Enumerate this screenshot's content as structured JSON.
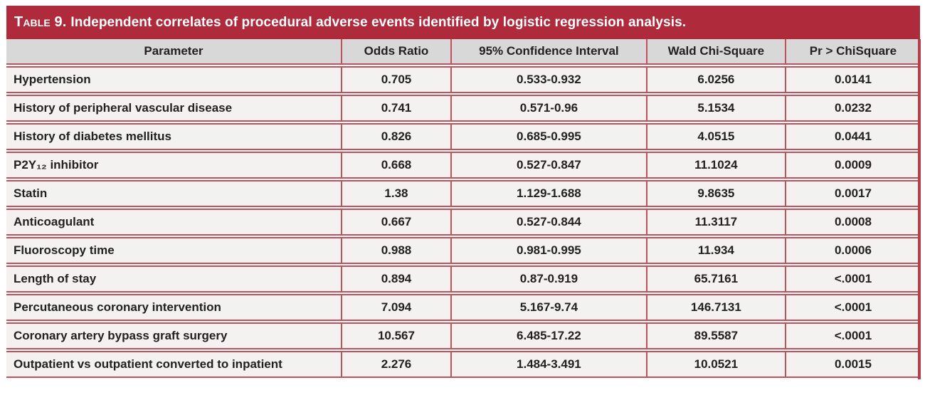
{
  "colors": {
    "title_bar_bg": "#AF2B3B",
    "title_text": "#FFFFFF",
    "header_bg": "#D9D8D9",
    "row_bg": "#F4F1F1",
    "grid_red": "#C2515C",
    "outer_right_red": "#B23F4A",
    "body_text": "#242021"
  },
  "table": {
    "title_prefix": "Table 9.",
    "title_rest": "Independent correlates of procedural adverse events identified by logistic regression analysis.",
    "columns": [
      "Parameter",
      "Odds Ratio",
      "95% Confidence Interval",
      "Wald Chi-Square",
      "Pr > ChiSquare"
    ],
    "rows": [
      [
        "Hypertension",
        "0.705",
        "0.533-0.932",
        "6.0256",
        "0.0141"
      ],
      [
        "History of peripheral vascular disease",
        "0.741",
        "0.571-0.96",
        "5.1534",
        "0.0232"
      ],
      [
        "History of diabetes mellitus",
        "0.826",
        "0.685-0.995",
        "4.0515",
        "0.0441"
      ],
      [
        "P2Y₁₂ inhibitor",
        "0.668",
        "0.527-0.847",
        "11.1024",
        "0.0009"
      ],
      [
        "Statin",
        "1.38",
        "1.129-1.688",
        "9.8635",
        "0.0017"
      ],
      [
        "Anticoagulant",
        "0.667",
        "0.527-0.844",
        "11.3117",
        "0.0008"
      ],
      [
        "Fluoroscopy time",
        "0.988",
        "0.981-0.995",
        "11.934",
        "0.0006"
      ],
      [
        "Length of stay",
        "0.894",
        "0.87-0.919",
        "65.7161",
        "<.0001"
      ],
      [
        "Percutaneous coronary intervention",
        "7.094",
        "5.167-9.74",
        "146.7131",
        "<.0001"
      ],
      [
        "Coronary artery bypass graft surgery",
        "10.567",
        "6.485-17.22",
        "89.5587",
        "<.0001"
      ],
      [
        "Outpatient vs outpatient converted to inpatient",
        "2.276",
        "1.484-3.491",
        "10.0521",
        "0.0015"
      ]
    ]
  },
  "chart_data": {
    "type": "table",
    "title": "TABLE 9. Independent correlates of procedural adverse events identified by logistic regression analysis.",
    "columns": [
      "Parameter",
      "Odds Ratio",
      "95% Confidence Interval",
      "Wald Chi-Square",
      "Pr > ChiSquare"
    ],
    "rows": [
      [
        "Hypertension",
        "0.705",
        "0.533-0.932",
        "6.0256",
        "0.0141"
      ],
      [
        "History of peripheral vascular disease",
        "0.741",
        "0.571-0.96",
        "5.1534",
        "0.0232"
      ],
      [
        "History of diabetes mellitus",
        "0.826",
        "0.685-0.995",
        "4.0515",
        "0.0441"
      ],
      [
        "P2Y₁₂ inhibitor",
        "0.668",
        "0.527-0.847",
        "11.1024",
        "0.0009"
      ],
      [
        "Statin",
        "1.38",
        "1.129-1.688",
        "9.8635",
        "0.0017"
      ],
      [
        "Anticoagulant",
        "0.667",
        "0.527-0.844",
        "11.3117",
        "0.0008"
      ],
      [
        "Fluoroscopy time",
        "0.988",
        "0.981-0.995",
        "11.934",
        "0.0006"
      ],
      [
        "Length of stay",
        "0.894",
        "0.87-0.919",
        "65.7161",
        "<.0001"
      ],
      [
        "Percutaneous coronary intervention",
        "7.094",
        "5.167-9.74",
        "146.7131",
        "<.0001"
      ],
      [
        "Coronary artery bypass graft surgery",
        "10.567",
        "6.485-17.22",
        "89.5587",
        "<.0001"
      ],
      [
        "Outpatient vs outpatient converted to inpatient",
        "2.276",
        "1.484-3.491",
        "10.0521",
        "0.0015"
      ]
    ]
  }
}
